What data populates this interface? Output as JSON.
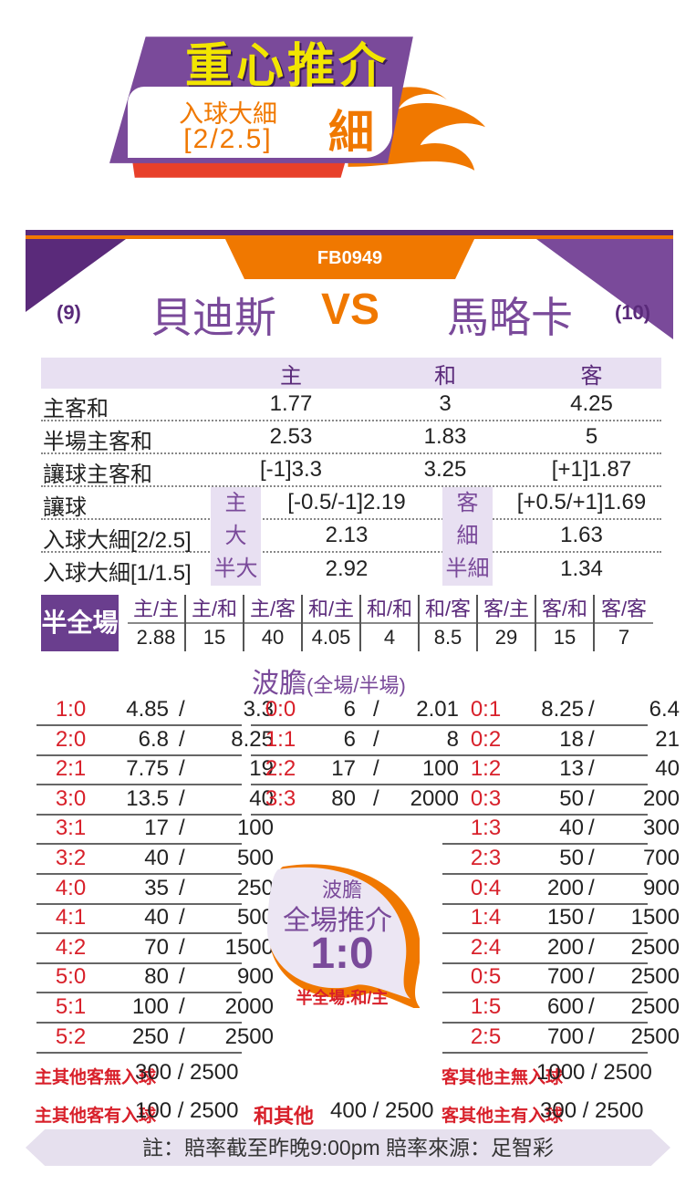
{
  "header": {
    "title": "重心推介",
    "pick_type": "入球大細",
    "pick_line": "[2/2.5]",
    "pick_side": "細"
  },
  "match": {
    "code": "FB0949",
    "home_rank": "(9)",
    "home_team": "貝迪斯",
    "vs": "VS",
    "away_team": "馬略卡",
    "away_rank": "(10)"
  },
  "odds": {
    "headers": [
      "主",
      "和",
      "客"
    ],
    "rows": [
      {
        "label": "主客和",
        "home": "1.77",
        "draw": "3",
        "away": "4.25"
      },
      {
        "label": "半場主客和",
        "home": "2.53",
        "draw": "1.83",
        "away": "5"
      },
      {
        "label": "讓球主客和",
        "home": "[-1]3.3",
        "draw": "3.25",
        "away": "[+1]1.87"
      },
      {
        "label": "讓球",
        "tag1": "主",
        "v1": "[-0.5/-1]2.19",
        "tag2": "客",
        "v2": "[+0.5/+1]1.69"
      },
      {
        "label": "入球大細[2/2.5]",
        "tag1": "大",
        "v1": "2.13",
        "tag2": "細",
        "v2": "1.63"
      },
      {
        "label": "入球大細[1/1.5]",
        "tag1": "半大",
        "v1": "2.92",
        "tag2": "半細",
        "v2": "1.34"
      }
    ]
  },
  "halftime_fulltime": {
    "label": "半全場",
    "items": [
      {
        "k": "主/主",
        "v": "2.88"
      },
      {
        "k": "主/和",
        "v": "15"
      },
      {
        "k": "主/客",
        "v": "40"
      },
      {
        "k": "和/主",
        "v": "4.05"
      },
      {
        "k": "和/和",
        "v": "4"
      },
      {
        "k": "和/客",
        "v": "8.5"
      },
      {
        "k": "客/主",
        "v": "29"
      },
      {
        "k": "客/和",
        "v": "15"
      },
      {
        "k": "客/客",
        "v": "7"
      }
    ]
  },
  "correct_score": {
    "title": "波膽",
    "subtitle": "(全場/半場)",
    "home": [
      {
        "s": "1:0",
        "a": "4.85",
        "b": "3.3"
      },
      {
        "s": "2:0",
        "a": "6.8",
        "b": "8.25"
      },
      {
        "s": "2:1",
        "a": "7.75",
        "b": "19"
      },
      {
        "s": "3:0",
        "a": "13.5",
        "b": "40"
      },
      {
        "s": "3:1",
        "a": "17",
        "b": "100"
      },
      {
        "s": "3:2",
        "a": "40",
        "b": "500"
      },
      {
        "s": "4:0",
        "a": "35",
        "b": "250"
      },
      {
        "s": "4:1",
        "a": "40",
        "b": "500"
      },
      {
        "s": "4:2",
        "a": "70",
        "b": "1500"
      },
      {
        "s": "5:0",
        "a": "80",
        "b": "900"
      },
      {
        "s": "5:1",
        "a": "100",
        "b": "2000"
      },
      {
        "s": "5:2",
        "a": "250",
        "b": "2500"
      }
    ],
    "draw": [
      {
        "s": "0:0",
        "a": "6",
        "b": "2.01"
      },
      {
        "s": "1:1",
        "a": "6",
        "b": "8"
      },
      {
        "s": "2:2",
        "a": "17",
        "b": "100"
      },
      {
        "s": "3:3",
        "a": "80",
        "b": "2000"
      }
    ],
    "away": [
      {
        "s": "0:1",
        "a": "8.25",
        "b": "6.4"
      },
      {
        "s": "0:2",
        "a": "18",
        "b": "21"
      },
      {
        "s": "1:2",
        "a": "13",
        "b": "40"
      },
      {
        "s": "0:3",
        "a": "50",
        "b": "200"
      },
      {
        "s": "1:3",
        "a": "40",
        "b": "300"
      },
      {
        "s": "2:3",
        "a": "50",
        "b": "700"
      },
      {
        "s": "0:4",
        "a": "200",
        "b": "900"
      },
      {
        "s": "1:4",
        "a": "150",
        "b": "1500"
      },
      {
        "s": "2:4",
        "a": "200",
        "b": "2500"
      },
      {
        "s": "0:5",
        "a": "700",
        "b": "2500"
      },
      {
        "s": "1:5",
        "a": "600",
        "b": "2500"
      },
      {
        "s": "2:5",
        "a": "700",
        "b": "2500"
      }
    ],
    "other": {
      "home_away_nil_label": "主其他客無入球",
      "home_away_nil": "300 / 2500",
      "away_home_nil_label": "客其他主無入球",
      "away_home_nil": "1000 / 2500",
      "home_away_scored_label": "主其他客有入球",
      "home_away_scored": "100 / 2500",
      "draw_other_label": "和其他",
      "draw_other": "400 / 2500",
      "away_home_scored_label": "客其他主有入球",
      "away_home_scored": "300 / 2500"
    },
    "recommend": {
      "l1": "波膽",
      "l2": "全場推介",
      "score": "1:0",
      "ht": "半全場:和/主"
    }
  },
  "footer": {
    "note": "註：賠率截至昨晚9:00pm 賠率來源：足智彩"
  },
  "colors": {
    "purple": "#7a4a9a",
    "orange": "#f07800",
    "red": "#d8202a",
    "yellow": "#f2e500"
  }
}
